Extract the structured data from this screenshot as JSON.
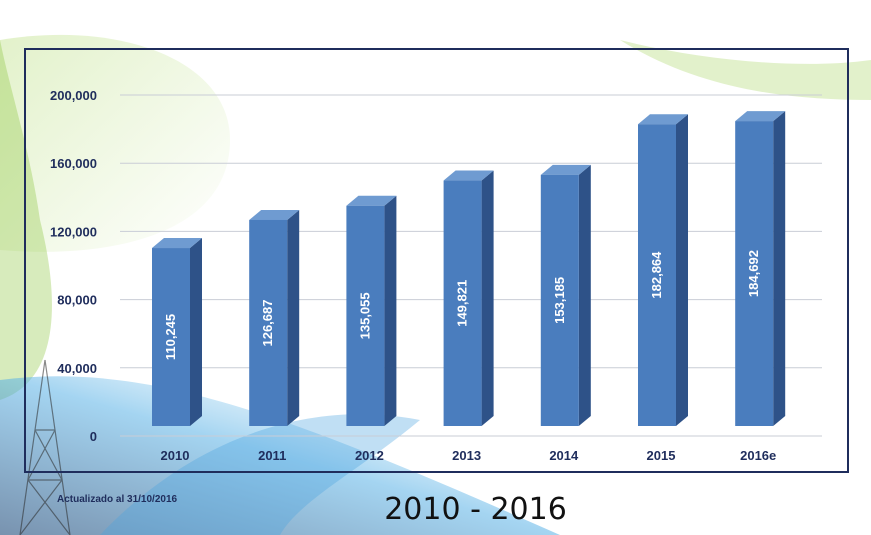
{
  "chart_data": {
    "type": "bar",
    "categories": [
      "2010",
      "2011",
      "2012",
      "2013",
      "2014",
      "2015",
      "2016e"
    ],
    "values": [
      110245,
      126687,
      135055,
      149821,
      153185,
      182864,
      184692
    ],
    "value_labels": [
      "110,245",
      "126,687",
      "135,055",
      "149,821",
      "153,185",
      "182,864",
      "184,692"
    ],
    "y_ticks": [
      "0",
      "40,000",
      "80,000",
      "120,000",
      "160,000",
      "200,000"
    ],
    "y_tick_values": [
      0,
      40000,
      80000,
      120000,
      160000,
      200000
    ],
    "ylim": [
      0,
      200000
    ],
    "grid": true,
    "bar_color": "#4a7dbe",
    "bar_side_color": "#2e5288",
    "bar_top_color": "#6f9bd1"
  },
  "footnote": "Actualizado al 31/10/2016",
  "caption": "2010 - 2016",
  "colors": {
    "frame": "#1f2d5c",
    "text": "#1f2d5c",
    "accent_green": "#8cc63f",
    "accent_blue": "#4aa3df"
  }
}
